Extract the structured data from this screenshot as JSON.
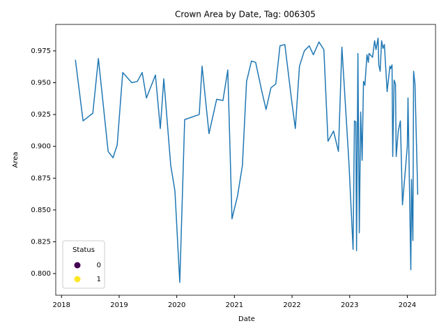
{
  "chart_data": {
    "type": "line",
    "title": "Crown Area by Date, Tag: 006305",
    "x_label": "Date",
    "y_label": "Area",
    "xlim": [
      2017.9,
      2024.49
    ],
    "xticks": [
      2018,
      2019,
      2020,
      2021,
      2022,
      2023,
      2024
    ],
    "ylim": [
      0.783,
      0.9958
    ],
    "yticks": [
      {
        "value": 0.8,
        "label": "0.800"
      },
      0.825,
      {
        "value": 0.85,
        "label": "0.850"
      },
      0.875,
      {
        "value": 0.9,
        "label": "0.900"
      },
      0.925,
      {
        "value": 0.95,
        "label": "0.950"
      },
      0.975
    ],
    "grid": false,
    "series": [
      {
        "color": "#1f77b4",
        "x": [
          2018.241,
          2018.374,
          2018.543,
          2018.64,
          2018.809,
          2018.893,
          2018.966,
          2019.062,
          2019.219,
          2019.316,
          2019.4,
          2019.473,
          2019.63,
          2019.714,
          2019.775,
          2019.895,
          2019.968,
          2020.052,
          2020.137,
          2020.39,
          2020.439,
          2020.559,
          2020.692,
          2020.801,
          2020.885,
          2020.958,
          2021.054,
          2021.139,
          2021.211,
          2021.296,
          2021.368,
          2021.477,
          2021.549,
          2021.634,
          2021.718,
          2021.791,
          2021.875,
          2021.996,
          2022.057,
          2022.129,
          2022.213,
          2022.298,
          2022.37,
          2022.467,
          2022.552,
          2022.624,
          2022.72,
          2022.805,
          2022.865,
          2022.986,
          2023.059,
          2023.083,
          2023.107,
          2023.119,
          2023.143,
          2023.167,
          2023.191,
          2023.216,
          2023.24,
          2023.264,
          2023.3,
          2023.324,
          2023.336,
          2023.397,
          2023.433,
          2023.457,
          2023.493,
          2023.505,
          2023.529,
          2023.554,
          2023.578,
          2023.602,
          2023.65,
          2023.698,
          2023.71,
          2023.735,
          2023.747,
          2023.771,
          2023.795,
          2023.807,
          2023.843,
          2023.88,
          2023.916,
          2024.0,
          2024.012,
          2024.061,
          2024.073,
          2024.097,
          2024.109,
          2024.133,
          2024.181
        ],
        "values": [
          0.968,
          0.92,
          0.926,
          0.969,
          0.896,
          0.891,
          0.901,
          0.958,
          0.95,
          0.951,
          0.958,
          0.938,
          0.956,
          0.914,
          0.953,
          0.885,
          0.865,
          0.793,
          0.921,
          0.925,
          0.963,
          0.91,
          0.937,
          0.936,
          0.96,
          0.843,
          0.861,
          0.885,
          0.951,
          0.967,
          0.966,
          0.943,
          0.929,
          0.946,
          0.949,
          0.979,
          0.98,
          0.935,
          0.914,
          0.963,
          0.975,
          0.979,
          0.972,
          0.982,
          0.976,
          0.904,
          0.912,
          0.896,
          0.978,
          0.888,
          0.819,
          0.92,
          0.919,
          0.818,
          0.973,
          0.832,
          0.927,
          0.889,
          0.951,
          0.948,
          0.972,
          0.966,
          0.973,
          0.97,
          0.983,
          0.976,
          0.985,
          0.964,
          0.959,
          0.983,
          0.977,
          0.98,
          0.943,
          0.963,
          0.961,
          0.964,
          0.892,
          0.952,
          0.949,
          0.892,
          0.912,
          0.92,
          0.854,
          0.9,
          0.938,
          0.803,
          0.874,
          0.826,
          0.959,
          0.949,
          0.862
        ]
      }
    ],
    "legend": {
      "title": "Status",
      "position": "lower left",
      "entries": [
        {
          "label": "0",
          "color": "#440154"
        },
        {
          "label": "1",
          "color": "#fde725"
        }
      ]
    }
  }
}
